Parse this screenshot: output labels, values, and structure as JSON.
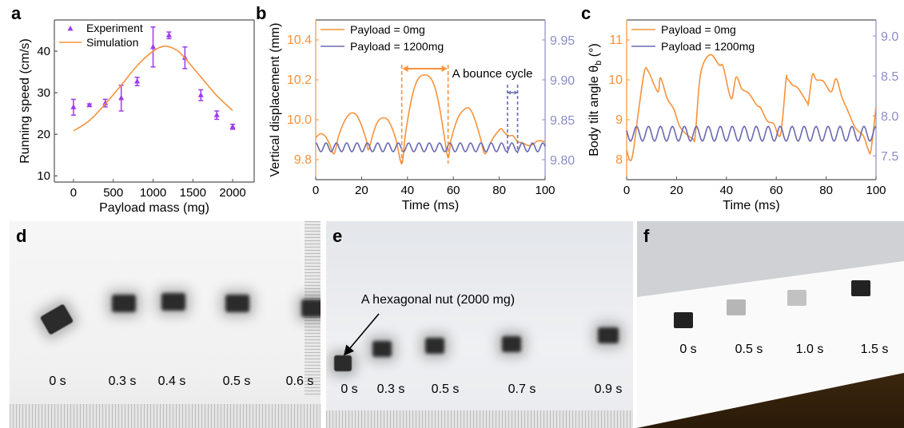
{
  "panels": {
    "a": {
      "letter": "a"
    },
    "b": {
      "letter": "b"
    },
    "c": {
      "letter": "c"
    },
    "d": {
      "letter": "d",
      "time_labels": [
        "0 s",
        "0.3 s",
        "0.4 s",
        "0.5 s",
        "0.6 s"
      ]
    },
    "e": {
      "letter": "e",
      "time_labels": [
        "0 s",
        "0.3 s",
        "0.5 s",
        "0.7 s",
        "0.9 s"
      ],
      "annotation": "A hexagonal nut (2000 mg)"
    },
    "f": {
      "letter": "f",
      "time_labels": [
        "0 s",
        "0.5 s",
        "1.0 s",
        "1.5 s"
      ]
    }
  },
  "colors": {
    "orange": "#F7923A",
    "blue": "#6A6AB2",
    "right_axis": "#8C8CC6",
    "experiment": "#9B3CF0"
  },
  "chart_data": [
    {
      "panel": "a",
      "type": "scatter",
      "xlabel": "Payload mass (mg)",
      "ylabel": "Running speed (cm/s)",
      "xlim": [
        -240,
        2270
      ],
      "ylim": [
        8.5,
        47.5
      ],
      "xticks": [
        0,
        500,
        1000,
        1500,
        2000
      ],
      "yticks": [
        10,
        20,
        30,
        40
      ],
      "legend": "top-left",
      "series": [
        {
          "name": "Experiment",
          "type": "scatter",
          "marker": "triangle",
          "x": [
            0,
            200,
            400,
            600,
            800,
            1000,
            1200,
            1400,
            1600,
            1800,
            2000
          ],
          "y": [
            26.5,
            27.0,
            27.5,
            28.7,
            32.7,
            41.0,
            43.8,
            38.4,
            29.4,
            24.6,
            21.8
          ],
          "yerr": [
            1.9,
            0.3,
            0.9,
            3.1,
            1.0,
            4.8,
            0.8,
            2.6,
            1.3,
            1.0,
            0.6
          ]
        },
        {
          "name": "Simulation",
          "type": "line",
          "x": [
            0,
            200,
            400,
            600,
            800,
            1000,
            1150,
            1300,
            1400,
            1600,
            1800,
            2000
          ],
          "y": [
            20.8,
            23.3,
            27.3,
            31.8,
            36.5,
            40.0,
            41.2,
            40.2,
            38.3,
            33.8,
            29.3,
            25.7
          ]
        }
      ]
    },
    {
      "panel": "b",
      "type": "line",
      "xlabel": "Time (ms)",
      "ylabel": "Vertical displacement (mm)",
      "xlim": [
        0,
        100
      ],
      "ylim": [
        9.7,
        10.5
      ],
      "ylim_right": [
        9.775,
        9.975
      ],
      "xticks": [
        0,
        20,
        40,
        60,
        80,
        100
      ],
      "yticks": [
        9.8,
        10.0,
        10.2,
        10.4
      ],
      "yticks_right": [
        9.8,
        9.85,
        9.9,
        9.95
      ],
      "yticks_labels": [
        "9.8",
        "10.0",
        "10.2",
        "10.4"
      ],
      "yticks_right_labels": [
        "9.80",
        "9.85",
        "9.90",
        "9.95"
      ],
      "legend": "top-left",
      "series": [
        {
          "name": "Payload = 0mg",
          "axis": "left",
          "x": [
            0,
            2,
            4,
            6,
            8,
            10,
            12,
            14,
            16,
            18,
            20,
            22,
            23,
            25,
            27,
            29.5,
            32,
            35,
            37.5,
            39,
            41,
            43,
            45,
            47.5,
            50,
            52,
            54,
            56,
            57.7,
            59,
            61,
            63,
            66,
            68,
            70,
            72,
            73.7,
            76,
            78,
            80.7,
            82,
            84,
            86,
            88,
            90,
            93,
            95,
            97,
            100
          ],
          "y": [
            9.91,
            9.93,
            9.92,
            9.88,
            9.83,
            9.92,
            9.98,
            10.02,
            10.035,
            10.02,
            9.97,
            9.9,
            9.85,
            9.93,
            9.99,
            10.01,
            9.99,
            9.9,
            9.78,
            9.92,
            10.06,
            10.16,
            10.21,
            10.225,
            10.21,
            10.16,
            10.06,
            9.92,
            9.81,
            9.9,
            9.98,
            10.03,
            10.06,
            10.04,
            9.98,
            9.9,
            9.83,
            9.88,
            9.92,
            9.955,
            9.94,
            9.92,
            9.92,
            9.89,
            9.885,
            9.87,
            9.88,
            9.895,
            9.89
          ]
        },
        {
          "name": "Payload = 1200mg",
          "axis": "right",
          "sinusoid": {
            "mean": 9.8155,
            "amplitude": 0.0055,
            "period": 4.5,
            "phase_start": "peak"
          }
        }
      ],
      "annotations": {
        "bounce_label": "A bounce cycle",
        "orange_cycle": [
          37.5,
          57.7
        ],
        "blue_cycle": [
          83.6,
          88.0
        ]
      }
    },
    {
      "panel": "c",
      "type": "line",
      "xlabel": "Time (ms)",
      "ylabel": "Body tilt angle θb (°)",
      "ylabel_parts": [
        "Body tilt angle θ",
        "b",
        " (°)"
      ],
      "xlim": [
        0,
        100
      ],
      "ylim": [
        7.5,
        11.5
      ],
      "ylim_right": [
        7.2,
        9.2
      ],
      "xticks": [
        0,
        20,
        40,
        60,
        80,
        100
      ],
      "yticks": [
        8,
        9,
        10,
        11
      ],
      "yticks_right": [
        7.5,
        8.0,
        8.5,
        9.0
      ],
      "yticks_labels": [
        "8",
        "9",
        "10",
        "11"
      ],
      "yticks_right_labels": [
        "7.5",
        "8.0",
        "8.5",
        "9.0"
      ],
      "legend": "top-left",
      "series": [
        {
          "name": "Payload = 0mg",
          "axis": "left",
          "x": [
            0,
            2.1,
            5,
            7.2,
            8.8,
            12.5,
            13.6,
            16.3,
            18.9,
            21.6,
            26.4,
            27.5,
            29.6,
            33.4,
            37.1,
            38.7,
            41.9,
            43.9,
            46.2,
            48.9,
            52.1,
            53.7,
            56.4,
            59,
            61.7,
            63.9,
            64.4,
            66.5,
            68.6,
            72.4,
            72.9,
            74.5,
            76.1,
            78.8,
            82,
            84,
            86.3,
            88.4,
            91.7,
            94.9,
            97,
            98,
            100
          ],
          "y": [
            8.23,
            8.03,
            9.33,
            10.23,
            10.2,
            9.7,
            10.05,
            9.53,
            9.27,
            8.8,
            8.53,
            8.6,
            10.13,
            10.63,
            10.37,
            10.33,
            9.53,
            10.07,
            9.77,
            9.67,
            9.37,
            9.3,
            8.97,
            8.9,
            8.63,
            10.0,
            10.03,
            9.87,
            9.8,
            9.43,
            9.43,
            10.13,
            10.0,
            9.97,
            9.7,
            10.03,
            9.57,
            9.27,
            8.8,
            8.6,
            8.23,
            8.25,
            9.33
          ]
        },
        {
          "name": "Payload = 1200mg",
          "axis": "right",
          "sinusoid": {
            "mean": 7.775,
            "amplitude": 0.092,
            "period": 4.8,
            "phase_start": "mid-descending"
          }
        }
      ]
    }
  ]
}
